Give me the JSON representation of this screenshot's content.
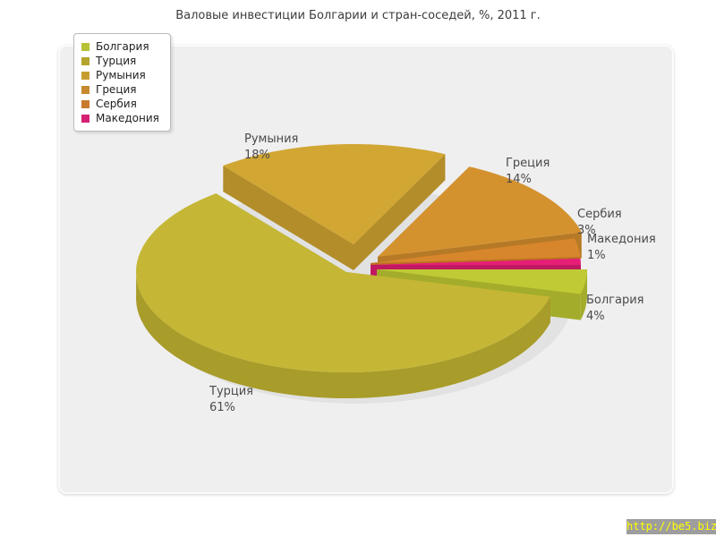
{
  "title": "Валовые инвестиции Болгарии и стран-соседей, %, 2011 г.",
  "watermark": {
    "url_text": "http://be5.biz/",
    "bar_color": "#9e9e9e",
    "text_color": "#ffff00"
  },
  "chart_data": {
    "type": "pie",
    "style": "3d-exploded",
    "title": "Валовые инвестиции Болгарии и стран-соседей, %, 2011 г.",
    "unit": "%",
    "legend_position": "top-left",
    "slices": [
      {
        "name": "Болгария",
        "value": 4,
        "value_label": "4%",
        "color": "#bfca35",
        "side_color": "#a3ad2b",
        "legend_color": "#b6c233"
      },
      {
        "name": "Турция",
        "value": 61,
        "value_label": "61%",
        "color": "#c5b735",
        "side_color": "#a89c2a",
        "legend_color": "#b3a42c"
      },
      {
        "name": "Румыния",
        "value": 18,
        "value_label": "18%",
        "color": "#d1a633",
        "side_color": "#b38d29",
        "legend_color": "#c69e30"
      },
      {
        "name": "Греция",
        "value": 14,
        "value_label": "14%",
        "color": "#d4922f",
        "side_color": "#b67a26",
        "legend_color": "#c8882e"
      },
      {
        "name": "Сербия",
        "value": 3,
        "value_label": "3%",
        "color": "#d8862c",
        "side_color": "#bc7123",
        "legend_color": "#c87b2e"
      },
      {
        "name": "Македония",
        "value": 1,
        "value_label": "1%",
        "color": "#e61e77",
        "side_color": "#c01862",
        "legend_color": "#d42173"
      }
    ]
  }
}
